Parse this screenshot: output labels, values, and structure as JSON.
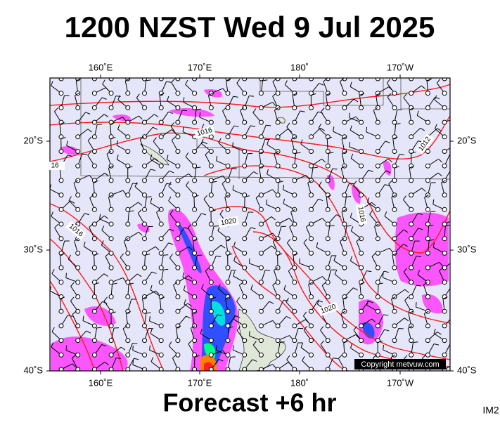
{
  "header": {
    "title": "1200 NZST Wed 9 Jul 2025"
  },
  "footer": {
    "forecast": "Forecast +6 hr",
    "code": "IM2"
  },
  "map": {
    "top_labels": [
      "160˚E",
      "170˚E",
      "180˚",
      "170˚W"
    ],
    "bottom_labels": [
      "160˚E",
      "170˚E",
      "180˚",
      "170˚W"
    ],
    "left_labels": [
      "20˚S",
      "30˚S",
      "40˚S"
    ],
    "right_labels": [
      "20˚S",
      "30˚S",
      "40˚S"
    ],
    "isobar_labels": [
      "1016",
      "1016",
      "1020",
      "1016",
      "1012",
      "1020",
      "16"
    ],
    "copyright": "Copyright metvuw.com"
  }
}
